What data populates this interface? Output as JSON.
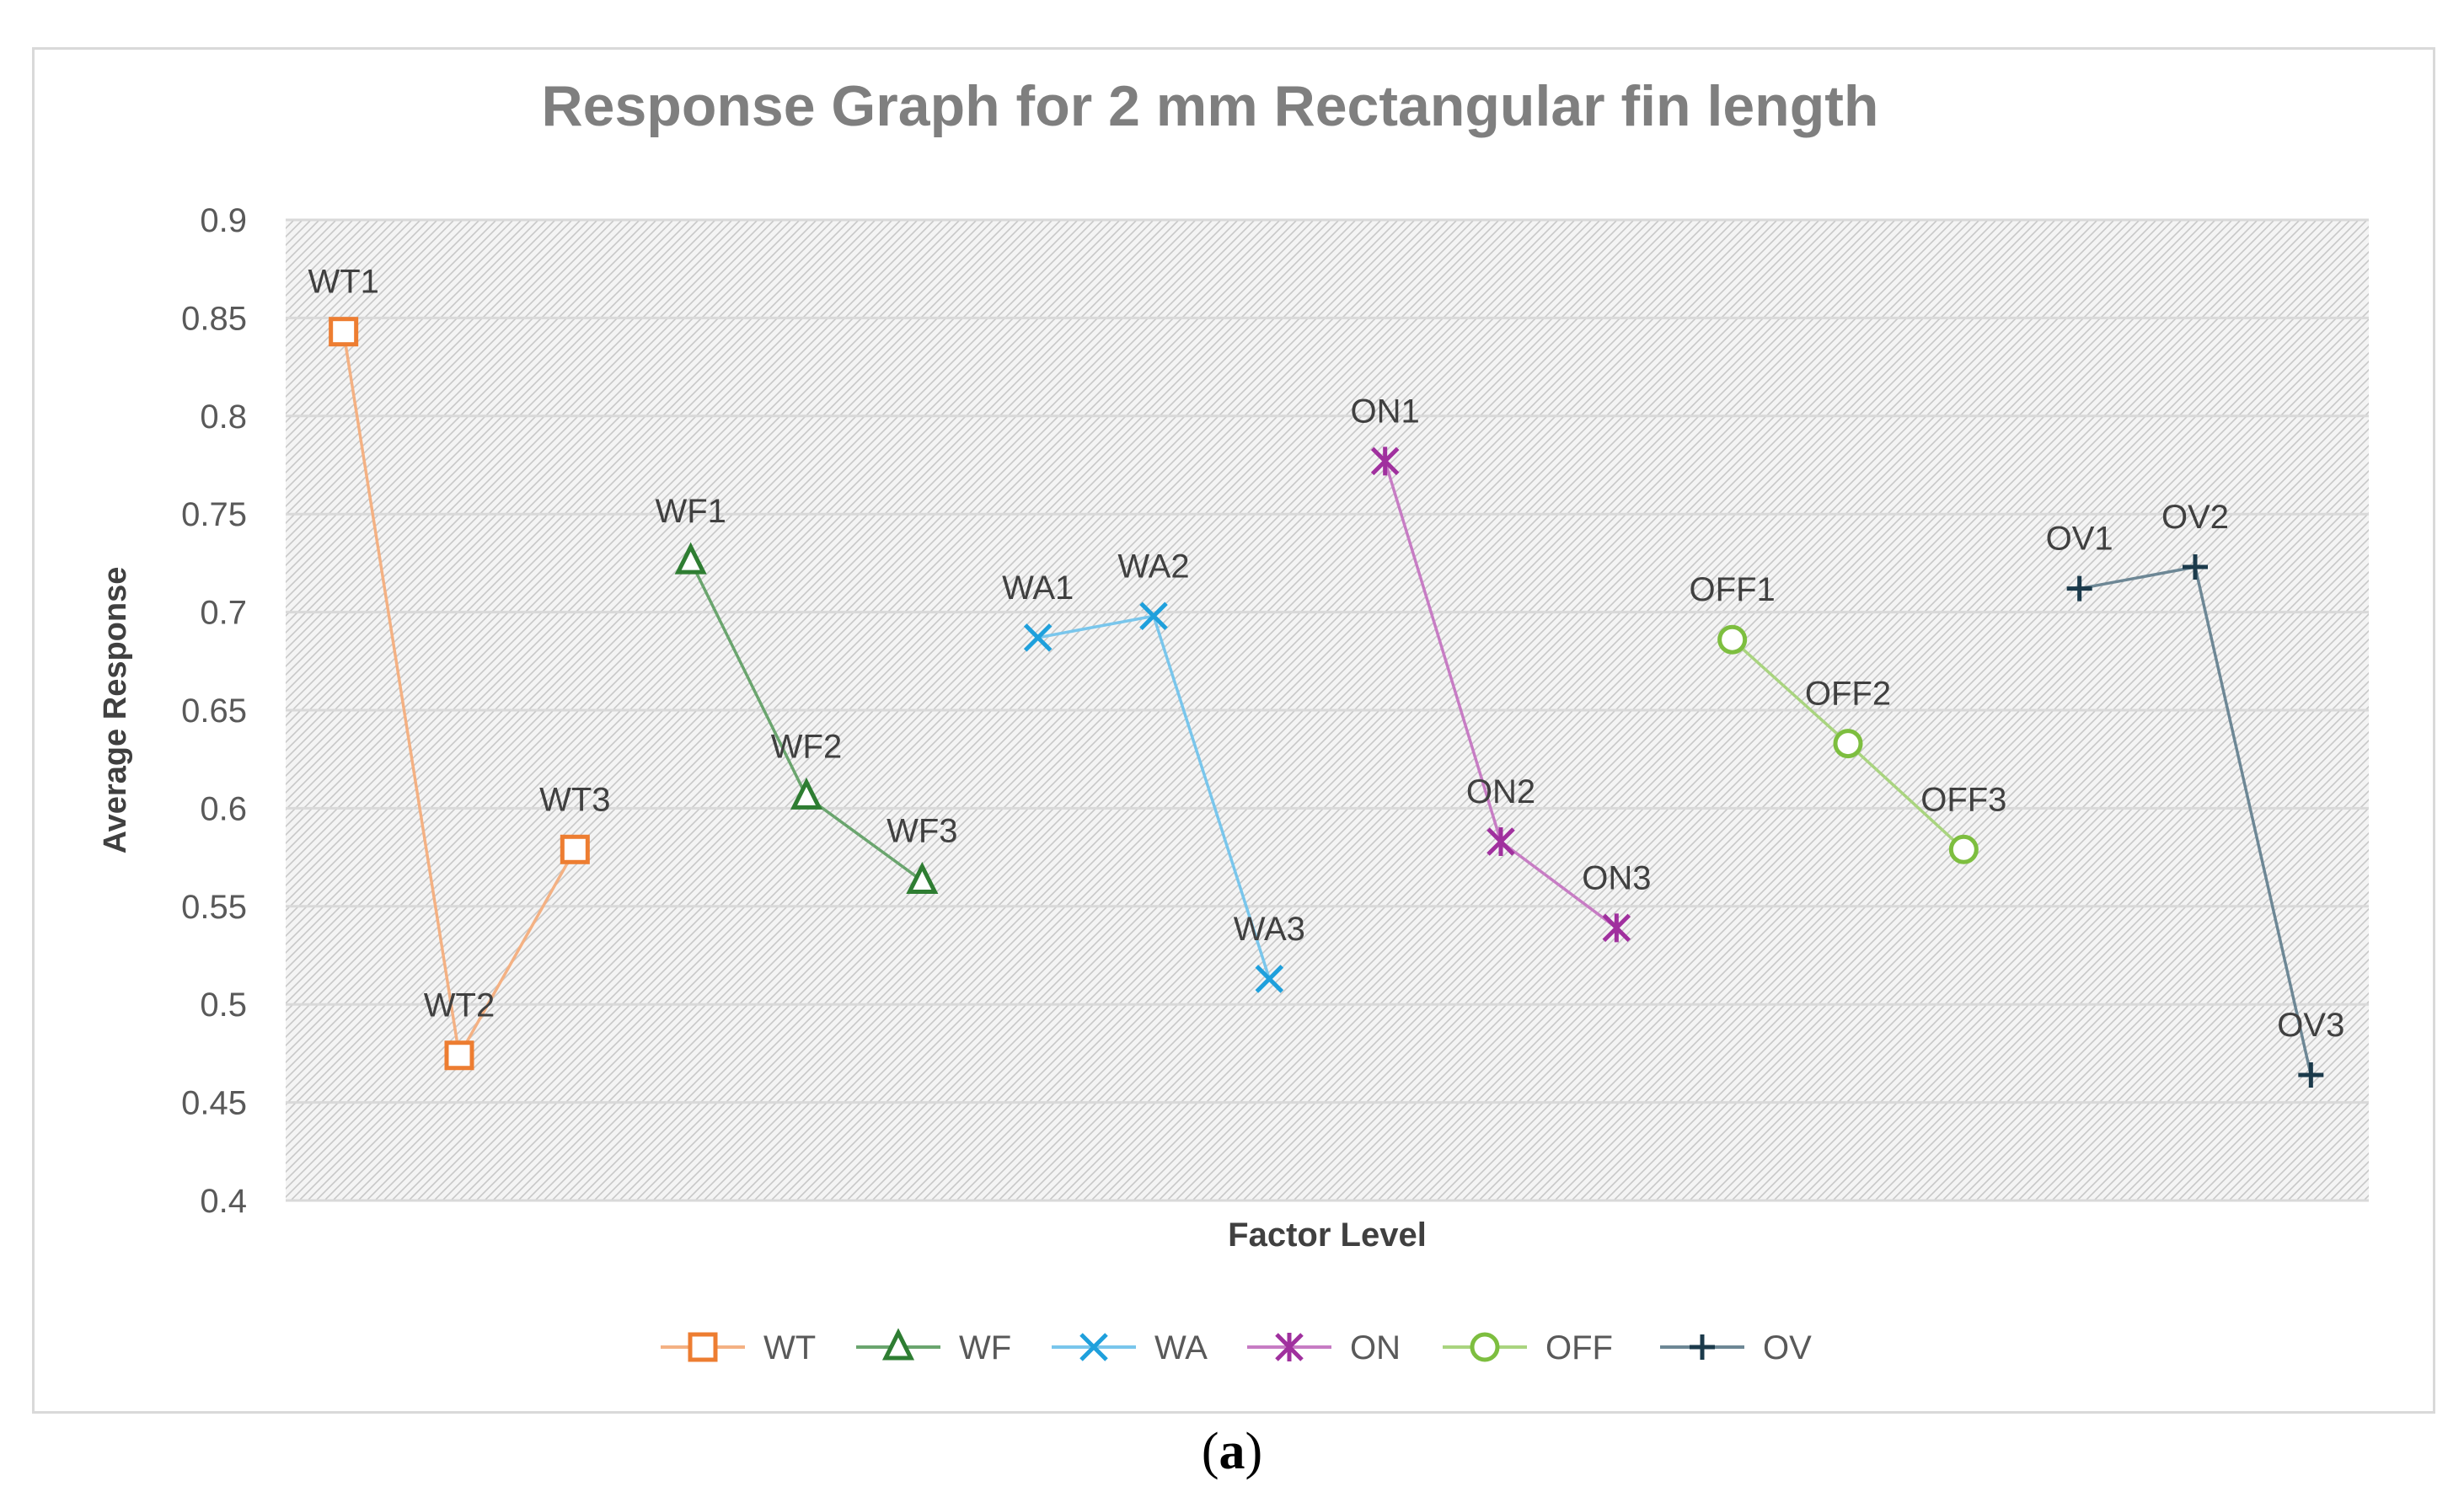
{
  "caption": {
    "open": "(",
    "letter": "a",
    "close": ")"
  },
  "chart_data": {
    "type": "line",
    "title": "Response Graph for 2 mm Rectangular fin length",
    "xlabel": "Factor Level",
    "ylabel": "Average Response",
    "ylim": [
      0.4,
      0.9
    ],
    "ytick_step": 0.05,
    "yticks": [
      "0.4",
      "0.45",
      "0.5",
      "0.55",
      "0.6",
      "0.65",
      "0.7",
      "0.75",
      "0.8",
      "0.85",
      "0.9"
    ],
    "x_count": 18,
    "grid": true,
    "legend_position": "bottom",
    "series": [
      {
        "name": "WT",
        "color": "#ED7D31",
        "line_color": "#F4B183",
        "marker": "square",
        "x": [
          1,
          2,
          3
        ],
        "labels": [
          "WT1",
          "WT2",
          "WT3"
        ],
        "values": [
          0.843,
          0.474,
          0.579
        ]
      },
      {
        "name": "WF",
        "color": "#2E7D32",
        "line_color": "#6AA56E",
        "marker": "triangle",
        "x": [
          4,
          5,
          6
        ],
        "labels": [
          "WF1",
          "WF2",
          "WF3"
        ],
        "values": [
          0.726,
          0.606,
          0.563
        ]
      },
      {
        "name": "WA",
        "color": "#1FA0DC",
        "line_color": "#79C6EC",
        "marker": "x",
        "x": [
          7,
          8,
          9
        ],
        "labels": [
          "WA1",
          "WA2",
          "WA3"
        ],
        "values": [
          0.687,
          0.698,
          0.513
        ]
      },
      {
        "name": "ON",
        "color": "#A0309E",
        "line_color": "#C77CC4",
        "marker": "star",
        "x": [
          10,
          11,
          12
        ],
        "labels": [
          "ON1",
          "ON2",
          "ON3"
        ],
        "values": [
          0.777,
          0.583,
          0.539
        ]
      },
      {
        "name": "OFF",
        "color": "#7DBE3F",
        "line_color": "#A9D47F",
        "marker": "circle",
        "x": [
          13,
          14,
          15
        ],
        "labels": [
          "OFF1",
          "OFF2",
          "OFF3"
        ],
        "values": [
          0.686,
          0.633,
          0.579
        ]
      },
      {
        "name": "OV",
        "color": "#1B3A4B",
        "line_color": "#6D8795",
        "marker": "plus",
        "x": [
          16,
          17,
          18
        ],
        "labels": [
          "OV1",
          "OV2",
          "OV3"
        ],
        "values": [
          0.712,
          0.723,
          0.464
        ]
      }
    ]
  }
}
